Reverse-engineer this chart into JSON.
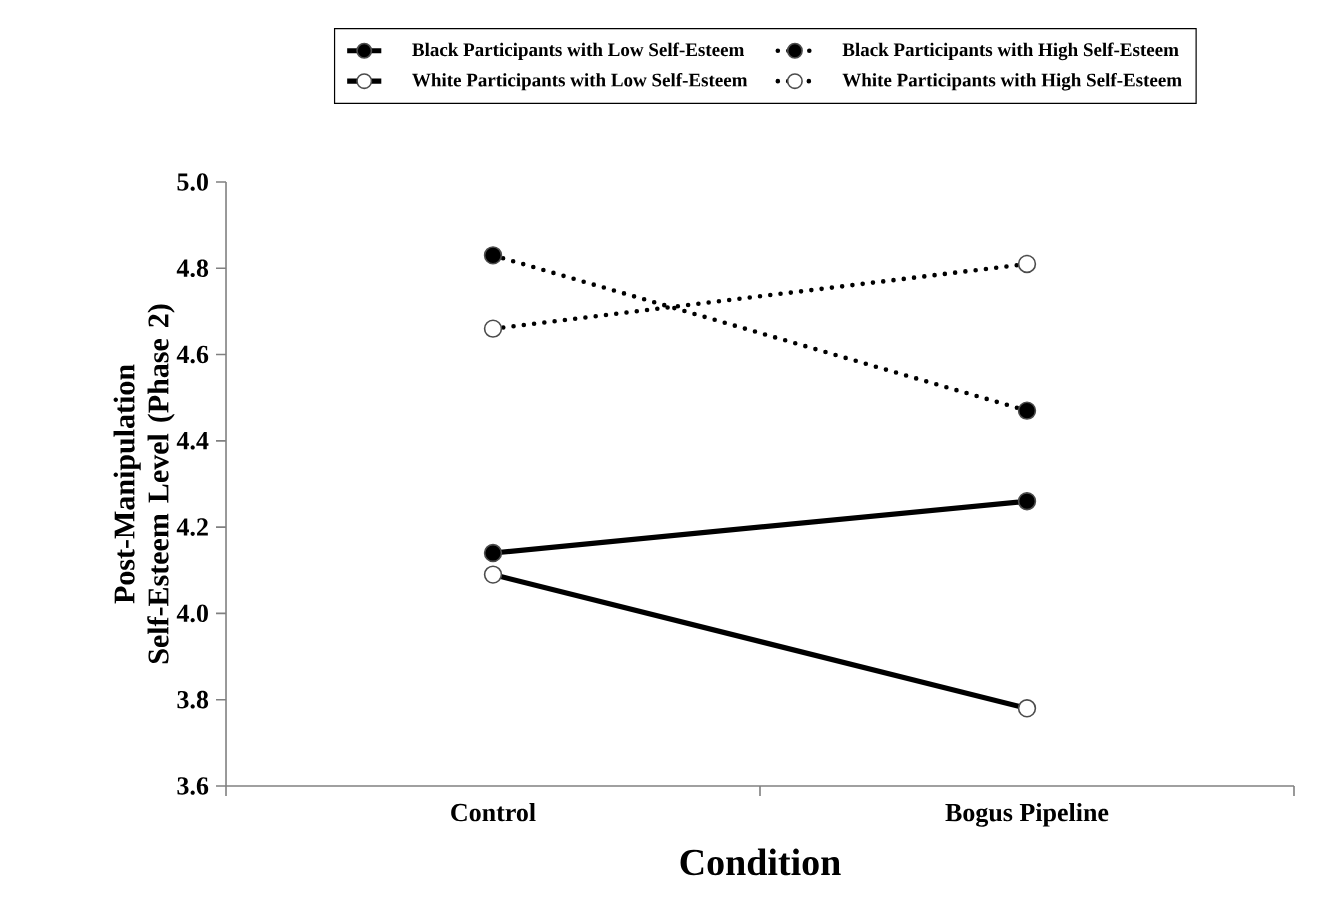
{
  "chart_data": {
    "type": "line",
    "xlabel": "Condition",
    "ylabel": "Post-Manipulation Self-Esteem Level (Phase 2)",
    "categories": [
      "Control",
      "Bogus Pipeline"
    ],
    "series": [
      {
        "name": "Black Participants with Low Self-Esteem",
        "color": "#000000",
        "line_style": "solid",
        "colors": [
          "#000000",
          "#000000"
        ],
        "values": [
          4.14,
          4.26
        ]
      },
      {
        "name": "Black Participants with High Self-Esteem",
        "color": "#000000",
        "line_style": "dotted",
        "colors": [
          "#000000",
          "#000000"
        ],
        "values": [
          4.83,
          4.47
        ]
      },
      {
        "name": "White Participants with Low Self-Esteem",
        "color": "#000000",
        "line_style": "solid",
        "colors": [
          "#ffffff",
          "#ffffff"
        ],
        "values": [
          4.09,
          3.78
        ]
      },
      {
        "name": "White Participants with High Self-Esteem",
        "color": "#000000",
        "line_style": "dotted",
        "colors": [
          "#ffffff",
          "#ffffff"
        ],
        "values": [
          4.66,
          4.81
        ]
      }
    ],
    "ylim": [
      3.6,
      5.0
    ],
    "yticks": [
      3.6,
      3.8,
      {
        "value": 4,
        "label": "4.0"
      },
      4.2,
      4.4,
      4.6,
      4.8,
      {
        "value": 5,
        "label": "5.0"
      }
    ],
    "marker": "circle",
    "grid": false,
    "legend": "top"
  }
}
